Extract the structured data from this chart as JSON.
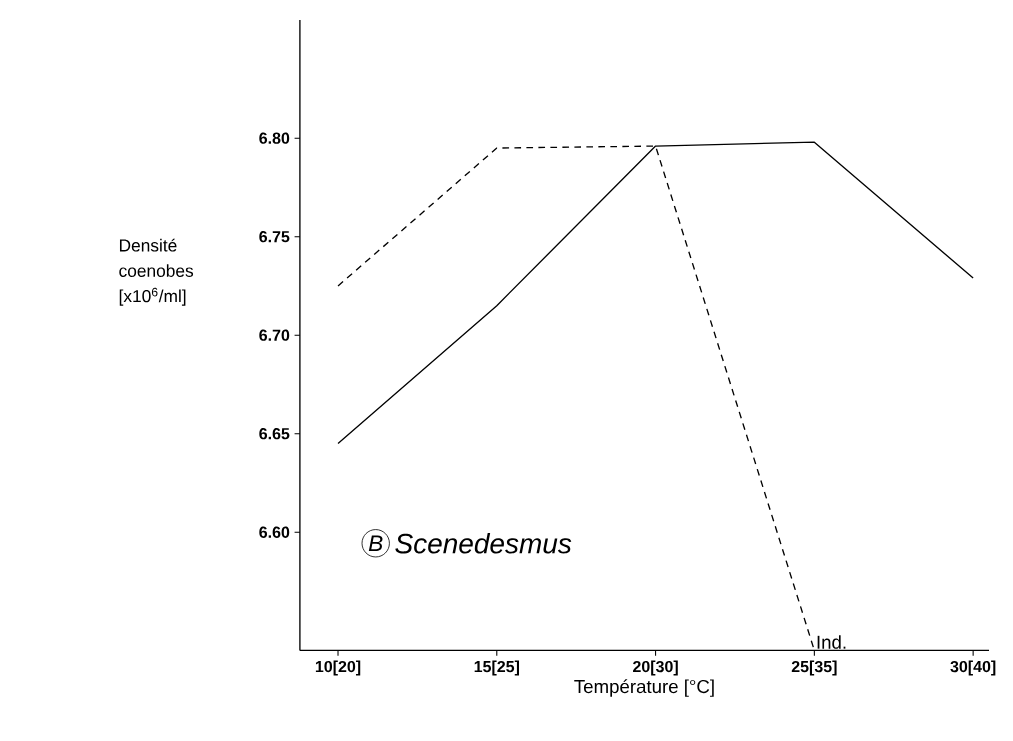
{
  "chart_data": {
    "type": "line",
    "xlabel": "Température [°C]",
    "ylabel": "Densité coenobes [x10$^{6}$/ml]",
    "categories": [
      "10[20]",
      "15[25]",
      "20[30]",
      "25[35]",
      "30[40]"
    ],
    "series": [
      {
        "color": "#000000",
        "line_style": "solid",
        "values": [
          6.645,
          6.715,
          6.796,
          6.798,
          6.729
        ]
      },
      {
        "color": "#000000",
        "line_style": "dashed",
        "values": [
          6.725,
          6.795,
          6.796,
          6.54,
          null
        ]
      }
    ],
    "ylim": [
      6.54,
      6.86
    ],
    "yticks": [
      {
        "value": 6.6,
        "label": "6.60"
      },
      {
        "value": 6.65,
        "label": "6.65"
      },
      {
        "value": 6.7,
        "label": "6.70"
      },
      {
        "value": 6.75,
        "label": "6.75"
      },
      {
        "value": 6.8,
        "label": "6.80"
      }
    ],
    "annotations": [
      "B",
      "Scenedesmus",
      {
        "text": "Ind.",
        "x": "25[35]",
        "y": 6.54
      }
    ],
    "grid": false,
    "marker": "none"
  }
}
